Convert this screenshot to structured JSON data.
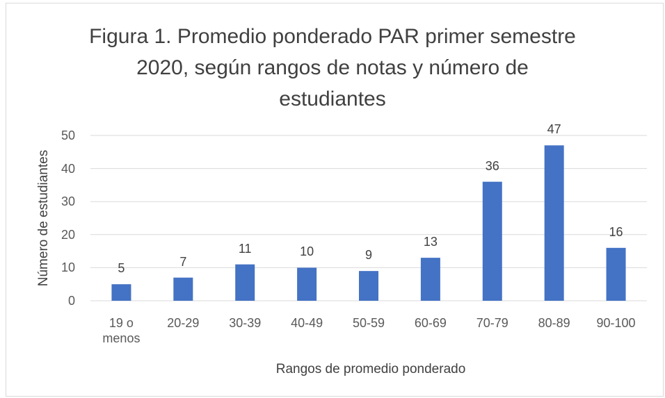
{
  "chart_data": {
    "type": "bar",
    "title": "Figura 1. Promedio ponderado PAR primer semestre 2020, según rangos de notas y número de estudiantes",
    "x_label": "Rangos de promedio ponderado",
    "y_label": "Número de estudiantes",
    "categories": [
      "19 o menos",
      "20-29",
      "30-39",
      "40-49",
      "50-59",
      "60-69",
      "70-79",
      "80-89",
      "90-100"
    ],
    "values": [
      5,
      7,
      11,
      10,
      9,
      13,
      36,
      47,
      16
    ],
    "color": "#4472c4",
    "ylim": [
      0,
      50
    ],
    "yticks": [
      0,
      10,
      20,
      30,
      40,
      50
    ],
    "grid": true
  }
}
